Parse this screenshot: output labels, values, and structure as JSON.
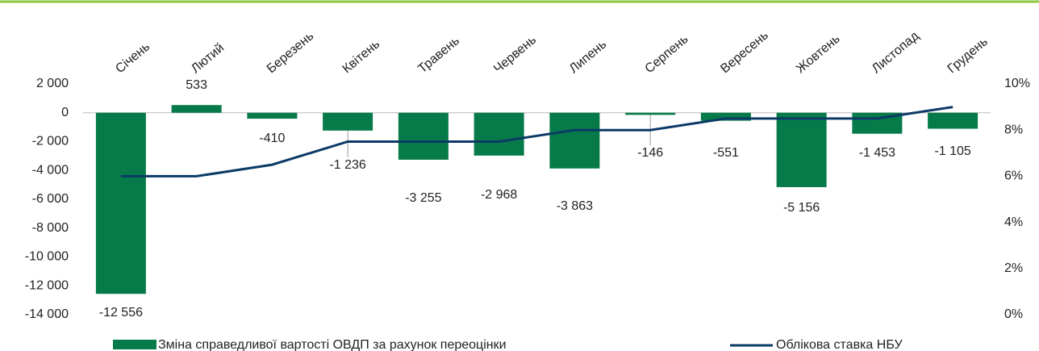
{
  "chart_data": {
    "type": "bar",
    "categories": [
      "Січень",
      "Лютий",
      "Березень",
      "Квітень",
      "Травень",
      "Червень",
      "Липень",
      "Серпень",
      "Вересень",
      "Жовтень",
      "Листопад",
      "Грудень"
    ],
    "series": [
      {
        "name": "Зміна справедливої вартості ОВДП за рахунок переоцінки",
        "type": "bar",
        "color": "#067a48",
        "values": [
          -12556,
          533,
          -410,
          -1236,
          -3255,
          -2968,
          -3863,
          -146,
          -551,
          -5156,
          -1453,
          -1105
        ],
        "value_labels": [
          "-12 556",
          "533",
          "-410",
          "-1 236",
          "-3 255",
          "-2 968",
          "-3 863",
          "-146",
          "-551",
          "-5 156",
          "-1 453",
          "-1 105"
        ]
      },
      {
        "name": "Облікова ставка НБУ",
        "type": "line",
        "axis": "y2",
        "color": "#0b3a66",
        "values": [
          6,
          6,
          6.5,
          7.5,
          7.5,
          7.5,
          8,
          8,
          8.5,
          8.5,
          8.5,
          9
        ]
      }
    ],
    "ylim": [
      -14000,
      2000
    ],
    "yticks": [
      {
        "value": 2000,
        "label": "2 000"
      },
      0,
      {
        "value": -2000,
        "label": "-2 000"
      },
      {
        "value": -4000,
        "label": "-4 000"
      },
      {
        "value": -6000,
        "label": "-6 000"
      },
      {
        "value": -8000,
        "label": "-8 000"
      },
      {
        "value": -10000,
        "label": "-10 000"
      },
      {
        "value": -12000,
        "label": "-12 000"
      },
      {
        "value": -14000,
        "label": "-14 000"
      }
    ],
    "y2lim": [
      0,
      10
    ],
    "y2ticks": [
      {
        "value": 10,
        "label": "10%"
      },
      {
        "value": 8,
        "label": "8%"
      },
      {
        "value": 6,
        "label": "6%"
      },
      {
        "value": 4,
        "label": "4%"
      },
      {
        "value": 2,
        "label": "2%"
      },
      {
        "value": 0,
        "label": "0%"
      }
    ]
  }
}
